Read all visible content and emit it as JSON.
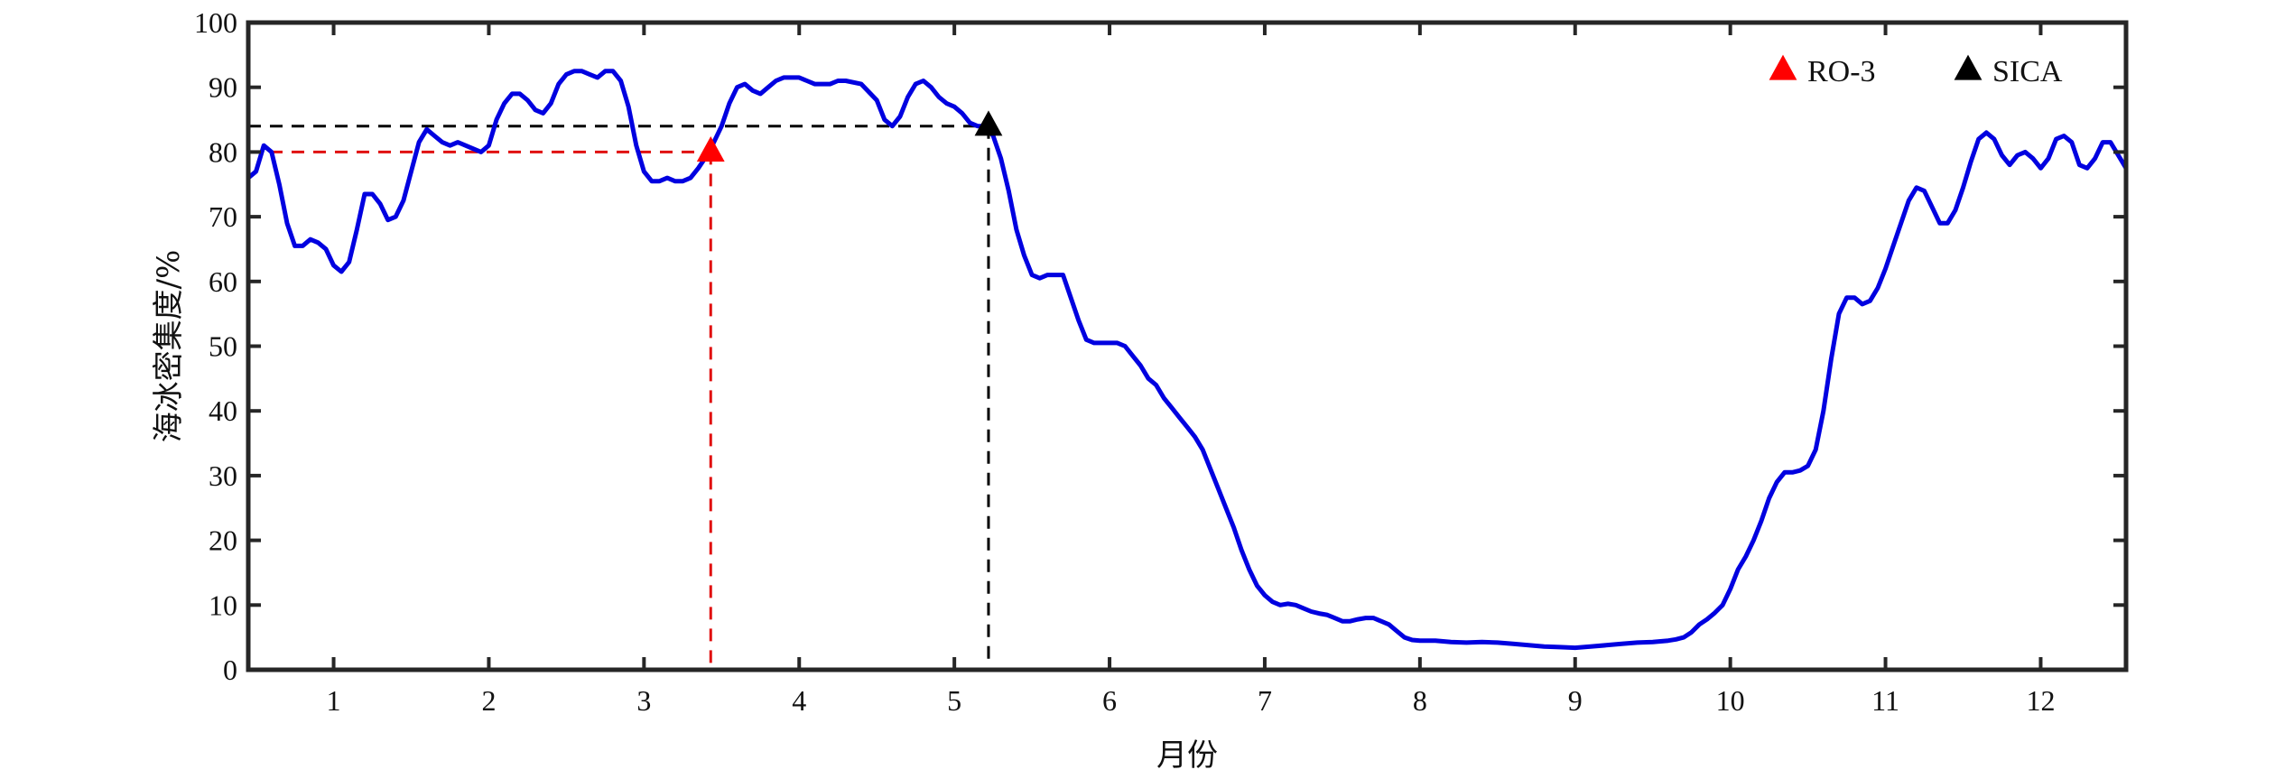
{
  "chart_data": {
    "type": "line",
    "title": "",
    "xlabel": "月份",
    "ylabel": "海冰密集度/%",
    "xlim": [
      0.45,
      12.55
    ],
    "ylim": [
      0,
      100
    ],
    "x_ticks": [
      1,
      2,
      3,
      4,
      5,
      6,
      7,
      8,
      9,
      10,
      11,
      12
    ],
    "y_ticks": [
      0,
      10,
      20,
      30,
      40,
      50,
      60,
      70,
      80,
      90,
      100
    ],
    "grid": false,
    "legend_position": "top-right",
    "series": [
      {
        "color": "#0000e0",
        "points": [
          [
            0.45,
            76
          ],
          [
            0.5,
            77
          ],
          [
            0.55,
            81
          ],
          [
            0.6,
            80
          ],
          [
            0.65,
            75
          ],
          [
            0.7,
            69
          ],
          [
            0.75,
            65.5
          ],
          [
            0.8,
            65.5
          ],
          [
            0.85,
            66.5
          ],
          [
            0.9,
            66
          ],
          [
            0.95,
            65
          ],
          [
            1.0,
            62.5
          ],
          [
            1.05,
            61.5
          ],
          [
            1.1,
            63
          ],
          [
            1.15,
            68
          ],
          [
            1.2,
            73.5
          ],
          [
            1.25,
            73.5
          ],
          [
            1.3,
            72
          ],
          [
            1.35,
            69.5
          ],
          [
            1.4,
            70
          ],
          [
            1.45,
            72.5
          ],
          [
            1.5,
            77
          ],
          [
            1.55,
            81.5
          ],
          [
            1.6,
            83.5
          ],
          [
            1.65,
            82.5
          ],
          [
            1.7,
            81.5
          ],
          [
            1.75,
            81
          ],
          [
            1.8,
            81.5
          ],
          [
            1.85,
            81
          ],
          [
            1.9,
            80.5
          ],
          [
            1.95,
            80
          ],
          [
            2.0,
            81
          ],
          [
            2.05,
            85
          ],
          [
            2.1,
            87.5
          ],
          [
            2.15,
            89
          ],
          [
            2.2,
            89
          ],
          [
            2.25,
            88
          ],
          [
            2.3,
            86.5
          ],
          [
            2.35,
            86
          ],
          [
            2.4,
            87.5
          ],
          [
            2.45,
            90.5
          ],
          [
            2.5,
            92
          ],
          [
            2.55,
            92.5
          ],
          [
            2.6,
            92.5
          ],
          [
            2.65,
            92
          ],
          [
            2.7,
            91.5
          ],
          [
            2.75,
            92.5
          ],
          [
            2.8,
            92.5
          ],
          [
            2.85,
            91
          ],
          [
            2.9,
            87
          ],
          [
            2.95,
            81
          ],
          [
            3.0,
            77
          ],
          [
            3.05,
            75.5
          ],
          [
            3.1,
            75.5
          ],
          [
            3.15,
            76
          ],
          [
            3.2,
            75.5
          ],
          [
            3.25,
            75.5
          ],
          [
            3.3,
            76
          ],
          [
            3.35,
            77.5
          ],
          [
            3.42,
            80
          ],
          [
            3.5,
            84
          ],
          [
            3.55,
            87.5
          ],
          [
            3.6,
            90
          ],
          [
            3.65,
            90.5
          ],
          [
            3.7,
            89.5
          ],
          [
            3.75,
            89
          ],
          [
            3.8,
            90
          ],
          [
            3.85,
            91
          ],
          [
            3.9,
            91.5
          ],
          [
            4.0,
            91.5
          ],
          [
            4.05,
            91
          ],
          [
            4.1,
            90.5
          ],
          [
            4.15,
            90.5
          ],
          [
            4.2,
            90.5
          ],
          [
            4.25,
            91
          ],
          [
            4.3,
            91
          ],
          [
            4.4,
            90.5
          ],
          [
            4.5,
            88
          ],
          [
            4.55,
            85
          ],
          [
            4.6,
            84
          ],
          [
            4.65,
            85.5
          ],
          [
            4.7,
            88.5
          ],
          [
            4.75,
            90.5
          ],
          [
            4.8,
            91
          ],
          [
            4.85,
            90
          ],
          [
            4.9,
            88.5
          ],
          [
            4.95,
            87.5
          ],
          [
            5.0,
            87
          ],
          [
            5.05,
            86
          ],
          [
            5.1,
            84.5
          ],
          [
            5.15,
            84
          ],
          [
            5.2,
            84
          ],
          [
            5.25,
            82.5
          ],
          [
            5.3,
            79
          ],
          [
            5.35,
            74
          ],
          [
            5.4,
            68
          ],
          [
            5.45,
            64
          ],
          [
            5.5,
            61
          ],
          [
            5.55,
            60.5
          ],
          [
            5.6,
            61
          ],
          [
            5.65,
            61
          ],
          [
            5.7,
            61
          ],
          [
            5.75,
            57.5
          ],
          [
            5.8,
            54
          ],
          [
            5.85,
            51
          ],
          [
            5.9,
            50.5
          ],
          [
            5.95,
            50.5
          ],
          [
            6.0,
            50.5
          ],
          [
            6.05,
            50.5
          ],
          [
            6.1,
            50
          ],
          [
            6.15,
            48.5
          ],
          [
            6.2,
            47
          ],
          [
            6.25,
            45
          ],
          [
            6.3,
            44
          ],
          [
            6.35,
            42
          ],
          [
            6.4,
            40.5
          ],
          [
            6.45,
            39
          ],
          [
            6.5,
            37.5
          ],
          [
            6.55,
            36
          ],
          [
            6.6,
            34
          ],
          [
            6.65,
            31
          ],
          [
            6.7,
            28
          ],
          [
            6.75,
            25
          ],
          [
            6.8,
            22
          ],
          [
            6.85,
            18.5
          ],
          [
            6.9,
            15.5
          ],
          [
            6.95,
            13
          ],
          [
            7.0,
            11.5
          ],
          [
            7.05,
            10.5
          ],
          [
            7.1,
            10
          ],
          [
            7.15,
            10.2
          ],
          [
            7.2,
            10
          ],
          [
            7.25,
            9.5
          ],
          [
            7.3,
            9
          ],
          [
            7.35,
            8.7
          ],
          [
            7.4,
            8.5
          ],
          [
            7.45,
            8
          ],
          [
            7.5,
            7.5
          ],
          [
            7.55,
            7.5
          ],
          [
            7.6,
            7.8
          ],
          [
            7.65,
            8
          ],
          [
            7.7,
            8
          ],
          [
            7.75,
            7.5
          ],
          [
            7.8,
            7
          ],
          [
            7.85,
            6
          ],
          [
            7.9,
            5
          ],
          [
            7.95,
            4.6
          ],
          [
            8.0,
            4.5
          ],
          [
            8.1,
            4.5
          ],
          [
            8.2,
            4.3
          ],
          [
            8.3,
            4.2
          ],
          [
            8.4,
            4.3
          ],
          [
            8.5,
            4.2
          ],
          [
            8.6,
            4
          ],
          [
            8.7,
            3.8
          ],
          [
            8.8,
            3.6
          ],
          [
            8.9,
            3.5
          ],
          [
            9.0,
            3.4
          ],
          [
            9.1,
            3.6
          ],
          [
            9.2,
            3.8
          ],
          [
            9.3,
            4
          ],
          [
            9.4,
            4.2
          ],
          [
            9.5,
            4.3
          ],
          [
            9.6,
            4.5
          ],
          [
            9.65,
            4.7
          ],
          [
            9.7,
            5
          ],
          [
            9.75,
            5.8
          ],
          [
            9.8,
            7
          ],
          [
            9.85,
            7.8
          ],
          [
            9.9,
            8.8
          ],
          [
            9.95,
            10
          ],
          [
            10.0,
            12.5
          ],
          [
            10.05,
            15.5
          ],
          [
            10.1,
            17.5
          ],
          [
            10.15,
            20
          ],
          [
            10.2,
            23
          ],
          [
            10.25,
            26.5
          ],
          [
            10.3,
            29
          ],
          [
            10.35,
            30.5
          ],
          [
            10.4,
            30.5
          ],
          [
            10.45,
            30.8
          ],
          [
            10.5,
            31.5
          ],
          [
            10.55,
            34
          ],
          [
            10.6,
            40
          ],
          [
            10.65,
            48
          ],
          [
            10.7,
            55
          ],
          [
            10.75,
            57.5
          ],
          [
            10.8,
            57.5
          ],
          [
            10.85,
            56.5
          ],
          [
            10.9,
            57
          ],
          [
            10.95,
            59
          ],
          [
            11.0,
            62
          ],
          [
            11.05,
            65.5
          ],
          [
            11.1,
            69
          ],
          [
            11.15,
            72.5
          ],
          [
            11.2,
            74.5
          ],
          [
            11.25,
            74
          ],
          [
            11.3,
            71.5
          ],
          [
            11.35,
            69
          ],
          [
            11.4,
            69
          ],
          [
            11.45,
            71
          ],
          [
            11.5,
            74.5
          ],
          [
            11.55,
            78.5
          ],
          [
            11.6,
            82
          ],
          [
            11.65,
            83
          ],
          [
            11.7,
            82
          ],
          [
            11.75,
            79.5
          ],
          [
            11.8,
            78
          ],
          [
            11.85,
            79.5
          ],
          [
            11.9,
            80
          ],
          [
            11.95,
            79
          ],
          [
            12.0,
            77.5
          ],
          [
            12.05,
            79
          ],
          [
            12.1,
            82
          ],
          [
            12.15,
            82.5
          ],
          [
            12.2,
            81.5
          ],
          [
            12.25,
            78
          ],
          [
            12.3,
            77.5
          ],
          [
            12.35,
            79
          ],
          [
            12.4,
            81.5
          ],
          [
            12.45,
            81.5
          ],
          [
            12.5,
            79.5
          ],
          [
            12.55,
            77.5
          ]
        ]
      }
    ],
    "markers": [
      {
        "name": "RO-3",
        "x": 3.43,
        "y": 80,
        "color": "#ff0000"
      },
      {
        "name": "SICA",
        "x": 5.22,
        "y": 84,
        "color": "#000000"
      }
    ]
  }
}
